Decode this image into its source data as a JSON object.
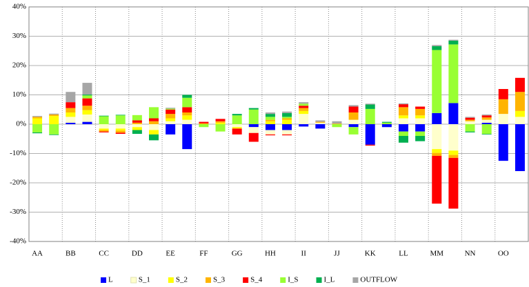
{
  "chart_data": {
    "type": "bar",
    "stacked": true,
    "categories": [
      "AA",
      null,
      "BB",
      null,
      "CC",
      null,
      "DD",
      null,
      "EE",
      null,
      "FF",
      null,
      "GG",
      null,
      "HH",
      null,
      "II",
      null,
      "JJ",
      null,
      "KK",
      null,
      "LL",
      null,
      "MM",
      null,
      "NN",
      null,
      "OO",
      null
    ],
    "series": [
      {
        "name": "L",
        "color": "#0000ff",
        "values": [
          0,
          0,
          0.5,
          0.8,
          0,
          0,
          0,
          0,
          -3.5,
          -8.5,
          0,
          0,
          0,
          -1,
          -2,
          -2,
          -0.8,
          -1.5,
          0,
          -1,
          -7,
          -1,
          -2.5,
          -2.5,
          3.8,
          7.2,
          0,
          0.5,
          -12.5,
          -16
        ]
      },
      {
        "name": "S_1",
        "color": "#ffffcc",
        "values": [
          0,
          0,
          2,
          2.5,
          -1.5,
          -1.5,
          -1,
          -2,
          1,
          1.5,
          0,
          0,
          -1,
          -2,
          -1.5,
          -1.5,
          3.5,
          0.5,
          0,
          1.5,
          0,
          0,
          2,
          2,
          -8.5,
          -9,
          1,
          1,
          3.5,
          2.5
        ]
      },
      {
        "name": "S_2",
        "color": "#ffff00",
        "values": [
          2,
          2.8,
          1.5,
          1.5,
          -0.5,
          -0.7,
          -1,
          -1.5,
          1,
          1.5,
          0,
          0.5,
          -0.5,
          0,
          1,
          1.5,
          1,
          0,
          0,
          0,
          0,
          0,
          1,
          1,
          -1.3,
          -1.5,
          0,
          0,
          0,
          2
        ]
      },
      {
        "name": "S_3",
        "color": "#ffb400",
        "values": [
          0.5,
          0.5,
          1.5,
          1.5,
          -0.5,
          -0.7,
          0.5,
          1,
          1.5,
          1,
          0.3,
          0.5,
          0,
          0,
          0.5,
          0.5,
          1,
          0.3,
          0.2,
          2.5,
          0,
          0,
          2.8,
          2.2,
          -1,
          -1,
          0.5,
          0.8,
          5,
          6.5
        ]
      },
      {
        "name": "S_4",
        "color": "#ff0000",
        "values": [
          0,
          0,
          2,
          2.5,
          -0.3,
          -0.4,
          0.8,
          1,
          1.5,
          1.8,
          0.5,
          0.8,
          -2,
          -3,
          -0.3,
          -0.3,
          0.8,
          0,
          0,
          2,
          -0.3,
          0,
          1,
          0.8,
          -16.3,
          -17.3,
          0.7,
          0.7,
          3.5,
          4.8
        ]
      },
      {
        "name": "I_S",
        "color": "#99ff33",
        "values": [
          -2.8,
          -3.5,
          0,
          1,
          2.7,
          3,
          1.8,
          3.8,
          0.3,
          3.2,
          -1,
          -2.5,
          3,
          5,
          1,
          0.5,
          0.7,
          0,
          -1,
          -2.5,
          5.2,
          0.5,
          -1.5,
          -1.5,
          21.5,
          20,
          -2.5,
          -3.3,
          0,
          0
        ]
      },
      {
        "name": "I_L",
        "color": "#00b050",
        "values": [
          -0.3,
          -0.2,
          0,
          0.3,
          0.2,
          0.2,
          -1.3,
          -2,
          0,
          1,
          0,
          0,
          0.5,
          0.5,
          1,
          1.3,
          0,
          0,
          0,
          0,
          1.5,
          0.3,
          -2.3,
          -1.8,
          1.3,
          1.3,
          -0.3,
          -0.2,
          0,
          0
        ]
      },
      {
        "name": "OUTFLOW",
        "color": "#a6a6a6",
        "values": [
          0.3,
          0.3,
          3.5,
          4,
          0,
          0,
          0,
          0,
          0.3,
          0,
          0,
          0,
          0,
          0,
          0.5,
          0.5,
          0.5,
          0.5,
          0.8,
          0.5,
          0.3,
          0,
          0.3,
          0,
          0.4,
          0.3,
          0.3,
          0.3,
          0,
          0
        ]
      }
    ],
    "ylim": [
      -40,
      40
    ],
    "yticks": [
      {
        "value": -40,
        "label": "-40%"
      },
      {
        "value": -30,
        "label": "-30%"
      },
      {
        "value": -20,
        "label": "-20%"
      },
      {
        "value": -10,
        "label": "-10%"
      },
      {
        "value": 0,
        "label": "0%"
      },
      {
        "value": 10,
        "label": "10%"
      },
      {
        "value": 20,
        "label": "20%"
      },
      {
        "value": 30,
        "label": "30%"
      },
      {
        "value": 40,
        "label": "40%"
      }
    ],
    "grid": true,
    "legend": "bottom"
  }
}
